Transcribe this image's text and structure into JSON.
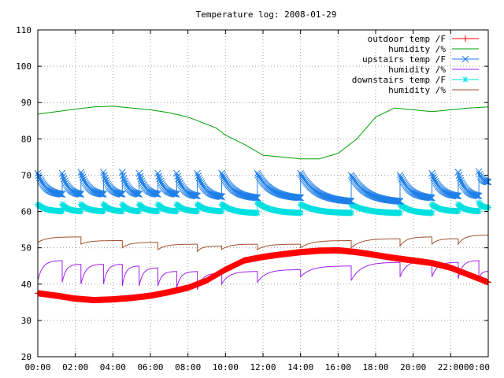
{
  "chart_data": {
    "type": "line",
    "title": "Temperature log: 2008-01-29",
    "xlabel": "",
    "ylabel": "",
    "xlim": [
      0,
      24
    ],
    "ylim": [
      20,
      110
    ],
    "x_ticks": [
      "00:00",
      "02:00",
      "04:00",
      "06:00",
      "08:00",
      "10:00",
      "12:00",
      "14:00",
      "16:00",
      "18:00",
      "20:00",
      "22:00",
      "00:00"
    ],
    "y_ticks": [
      "20",
      "30",
      "40",
      "50",
      "60",
      "70",
      "80",
      "90",
      "100",
      "110"
    ],
    "grid": true,
    "legend_position": "top-right",
    "series": [
      {
        "name": "outdoor temp /F",
        "color": "#ff0000",
        "marker": "plus",
        "x": [
          0,
          1,
          2,
          3,
          4,
          5,
          6,
          7,
          8,
          9,
          10,
          11,
          12,
          13,
          14,
          15,
          16,
          17,
          18,
          19,
          20,
          21,
          22,
          23,
          24
        ],
        "y": [
          37.5,
          36.8,
          36.0,
          35.6,
          35.8,
          36.2,
          36.8,
          37.8,
          39.0,
          41.0,
          44.0,
          46.5,
          47.5,
          48.2,
          48.8,
          49.2,
          49.3,
          48.8,
          48.0,
          47.2,
          46.5,
          45.8,
          44.5,
          42.5,
          40.5
        ]
      },
      {
        "name": "humidity /%",
        "color": "#00a000",
        "marker": "none",
        "x": [
          0,
          1,
          2,
          3,
          4,
          5,
          6,
          7,
          8,
          9,
          9.5,
          10,
          11,
          12,
          13,
          14,
          15,
          16,
          17,
          18,
          19,
          20,
          21,
          22,
          23,
          24
        ],
        "y": [
          86.8,
          87.5,
          88.2,
          88.8,
          89.0,
          88.5,
          88.0,
          87.2,
          86.0,
          84.0,
          83.0,
          81.0,
          78.5,
          75.5,
          75.0,
          74.5,
          74.5,
          76.0,
          80.0,
          86.0,
          88.5,
          88.0,
          87.5,
          88.0,
          88.5,
          88.8
        ]
      },
      {
        "name": "upstairs temp /F",
        "color": "#1f7fe8",
        "marker": "x",
        "cycles": [
          {
            "start": 0.0,
            "end": 1.3,
            "peak": 70.5,
            "base": 64.5
          },
          {
            "start": 1.3,
            "end": 2.3,
            "peak": 70.5,
            "base": 64.5
          },
          {
            "start": 2.3,
            "end": 3.5,
            "peak": 70.8,
            "base": 64.5
          },
          {
            "start": 3.5,
            "end": 4.5,
            "peak": 70.8,
            "base": 64.5
          },
          {
            "start": 4.5,
            "end": 5.4,
            "peak": 70.8,
            "base": 64.5
          },
          {
            "start": 5.4,
            "end": 6.4,
            "peak": 70.5,
            "base": 64.5
          },
          {
            "start": 6.4,
            "end": 7.4,
            "peak": 70.5,
            "base": 64.5
          },
          {
            "start": 7.4,
            "end": 8.5,
            "peak": 70.5,
            "base": 64.0
          },
          {
            "start": 8.5,
            "end": 9.8,
            "peak": 70.5,
            "base": 63.8
          },
          {
            "start": 9.8,
            "end": 11.7,
            "peak": 70.5,
            "base": 63.5
          },
          {
            "start": 11.7,
            "end": 14.0,
            "peak": 70.5,
            "base": 63.5
          },
          {
            "start": 14.0,
            "end": 16.7,
            "peak": 70.5,
            "base": 62.5
          },
          {
            "start": 16.7,
            "end": 19.3,
            "peak": 70.0,
            "base": 62.5
          },
          {
            "start": 19.3,
            "end": 21.0,
            "peak": 70.0,
            "base": 63.5
          },
          {
            "start": 21.0,
            "end": 22.4,
            "peak": 70.5,
            "base": 64.0
          },
          {
            "start": 22.4,
            "end": 23.5,
            "peak": 70.8,
            "base": 64.0
          },
          {
            "start": 23.5,
            "end": 24.0,
            "peak": 71.0,
            "base": 68.0
          }
        ]
      },
      {
        "name": "humidity /%",
        "color": "#a020f0",
        "marker": "none",
        "cycles": [
          {
            "start": 0.0,
            "end": 1.3,
            "low": 41.0,
            "high": 46.5
          },
          {
            "start": 1.3,
            "end": 2.3,
            "low": 40.5,
            "high": 45.5
          },
          {
            "start": 2.3,
            "end": 3.5,
            "low": 40.0,
            "high": 45.5
          },
          {
            "start": 3.5,
            "end": 4.5,
            "low": 40.0,
            "high": 45.5
          },
          {
            "start": 4.5,
            "end": 5.4,
            "low": 39.5,
            "high": 45.0
          },
          {
            "start": 5.4,
            "end": 6.4,
            "low": 39.5,
            "high": 44.5
          },
          {
            "start": 6.4,
            "end": 7.4,
            "low": 39.5,
            "high": 43.5
          },
          {
            "start": 7.4,
            "end": 8.5,
            "low": 39.0,
            "high": 43.5
          },
          {
            "start": 8.5,
            "end": 9.8,
            "low": 38.5,
            "high": 43.0
          },
          {
            "start": 9.8,
            "end": 11.7,
            "low": 40.0,
            "high": 43.5
          },
          {
            "start": 11.7,
            "end": 14.0,
            "low": 40.5,
            "high": 44.0
          },
          {
            "start": 14.0,
            "end": 16.7,
            "low": 42.0,
            "high": 45.0
          },
          {
            "start": 16.7,
            "end": 19.3,
            "low": 41.0,
            "high": 46.0
          },
          {
            "start": 19.3,
            "end": 21.0,
            "low": 42.0,
            "high": 46.5
          },
          {
            "start": 21.0,
            "end": 22.4,
            "low": 42.0,
            "high": 46.0
          },
          {
            "start": 22.4,
            "end": 23.5,
            "low": 41.5,
            "high": 46.5
          },
          {
            "start": 23.5,
            "end": 24.0,
            "low": 41.0,
            "high": 43.5
          }
        ]
      },
      {
        "name": "downstairs temp /F",
        "color": "#00e0e0",
        "marker": "star",
        "cycles": [
          {
            "start": 0.0,
            "end": 1.3,
            "peak": 62.0,
            "base": 60.0
          },
          {
            "start": 1.3,
            "end": 2.3,
            "peak": 62.0,
            "base": 60.0
          },
          {
            "start": 2.3,
            "end": 3.5,
            "peak": 62.0,
            "base": 60.0
          },
          {
            "start": 3.5,
            "end": 4.5,
            "peak": 62.0,
            "base": 60.0
          },
          {
            "start": 4.5,
            "end": 5.4,
            "peak": 62.0,
            "base": 60.0
          },
          {
            "start": 5.4,
            "end": 6.4,
            "peak": 62.0,
            "base": 60.0
          },
          {
            "start": 6.4,
            "end": 7.4,
            "peak": 62.0,
            "base": 60.0
          },
          {
            "start": 7.4,
            "end": 8.5,
            "peak": 62.0,
            "base": 60.0
          },
          {
            "start": 8.5,
            "end": 9.8,
            "peak": 62.0,
            "base": 60.0
          },
          {
            "start": 9.8,
            "end": 11.7,
            "peak": 62.0,
            "base": 59.5
          },
          {
            "start": 11.7,
            "end": 14.0,
            "peak": 62.5,
            "base": 59.5
          },
          {
            "start": 14.0,
            "end": 16.7,
            "peak": 62.0,
            "base": 59.5
          },
          {
            "start": 16.7,
            "end": 19.3,
            "peak": 62.0,
            "base": 59.5
          },
          {
            "start": 19.3,
            "end": 21.0,
            "peak": 62.0,
            "base": 59.5
          },
          {
            "start": 21.0,
            "end": 22.4,
            "peak": 62.0,
            "base": 60.0
          },
          {
            "start": 22.4,
            "end": 23.5,
            "peak": 62.0,
            "base": 60.0
          },
          {
            "start": 23.5,
            "end": 24.0,
            "peak": 62.5,
            "base": 61.0
          }
        ]
      },
      {
        "name": "humidity /%",
        "color": "#a0522d",
        "marker": "none",
        "cycles": [
          {
            "start": 0.0,
            "end": 2.3,
            "low": 51.5,
            "high": 53.0
          },
          {
            "start": 2.3,
            "end": 4.5,
            "low": 51.0,
            "high": 52.0
          },
          {
            "start": 4.5,
            "end": 6.4,
            "low": 50.0,
            "high": 51.5
          },
          {
            "start": 6.4,
            "end": 8.5,
            "low": 49.5,
            "high": 51.0
          },
          {
            "start": 8.5,
            "end": 9.8,
            "low": 49.0,
            "high": 50.5
          },
          {
            "start": 9.8,
            "end": 11.7,
            "low": 49.5,
            "high": 51.0
          },
          {
            "start": 11.7,
            "end": 14.0,
            "low": 49.5,
            "high": 51.0
          },
          {
            "start": 14.0,
            "end": 16.7,
            "low": 50.0,
            "high": 52.0
          },
          {
            "start": 16.7,
            "end": 19.3,
            "low": 50.0,
            "high": 52.5
          },
          {
            "start": 19.3,
            "end": 21.0,
            "low": 50.5,
            "high": 53.0
          },
          {
            "start": 21.0,
            "end": 22.4,
            "low": 51.0,
            "high": 52.5
          },
          {
            "start": 22.4,
            "end": 24.0,
            "low": 51.0,
            "high": 53.5
          }
        ]
      }
    ]
  }
}
